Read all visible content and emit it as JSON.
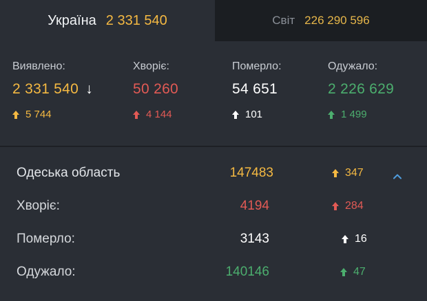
{
  "tabs": {
    "ukraine": {
      "label": "Україна",
      "value": "2 331 540"
    },
    "world": {
      "label": "Світ",
      "value": "226 290 596"
    }
  },
  "stats": {
    "detected": {
      "label": "Виявлено:",
      "value": "2 331 540",
      "sort_icon": "↓",
      "delta": "5 744"
    },
    "sick": {
      "label": "Хворіє:",
      "value": "50 260",
      "delta": "4 144"
    },
    "died": {
      "label": "Померло:",
      "value": "54 651",
      "delta": "101"
    },
    "recovered": {
      "label": "Одужало:",
      "value": "2 226 629",
      "delta": "1 499"
    }
  },
  "region": {
    "name": "Одеська область",
    "total": "147483",
    "total_delta": "347",
    "rows": [
      {
        "label": "Хворіє:",
        "value": "4194",
        "delta": "284"
      },
      {
        "label": "Померло:",
        "value": "3143",
        "delta": "16"
      },
      {
        "label": "Одужало:",
        "value": "140146",
        "delta": "47"
      }
    ]
  },
  "colors": {
    "yellow": "#f5b942",
    "red": "#e25a55",
    "white": "#ffffff",
    "green": "#4cae6e",
    "accent_blue": "#4f9ddf"
  },
  "icons": {
    "delta": "up-arrow-icon",
    "sort": "down-arrow-icon",
    "collapse": "chevron-up-icon"
  }
}
